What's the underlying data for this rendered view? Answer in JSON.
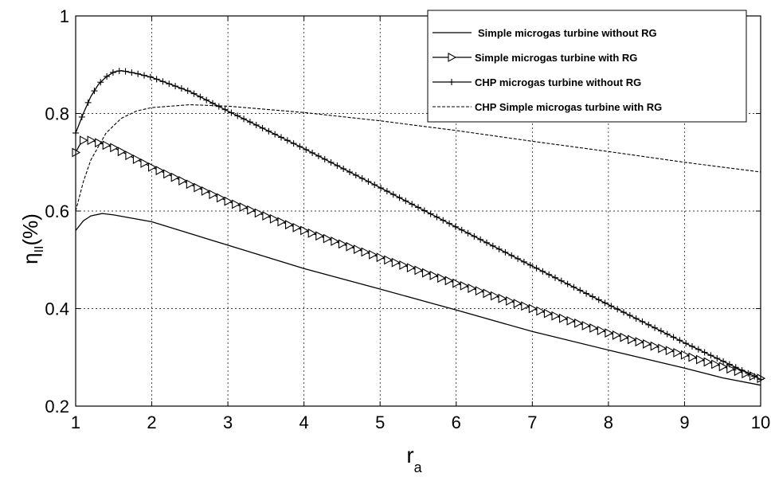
{
  "chart_data": {
    "type": "line",
    "title": "",
    "xlabel": "r",
    "xlabel_subscript": "a",
    "ylabel": "η",
    "ylabel_subscript": "II",
    "ylabel_suffix": "(%)",
    "xlim": [
      1,
      10
    ],
    "ylim": [
      0.2,
      1
    ],
    "xticks": [
      1,
      2,
      3,
      4,
      5,
      6,
      7,
      8,
      9,
      10
    ],
    "xtick_labels": [
      "1",
      "2",
      "3",
      "4",
      "5",
      "6",
      "7",
      "8",
      "9",
      "10"
    ],
    "yticks": [
      0.2,
      0.4,
      0.6,
      0.8,
      1
    ],
    "ytick_labels": [
      "0.2",
      "0.4",
      "0.6",
      "0.8",
      "1"
    ],
    "grid": true,
    "legend_position": "top-right",
    "series": [
      {
        "name": "Simple microgas turbine without RG",
        "style": "solid",
        "marker": "none",
        "x": [
          1,
          1.1,
          1.2,
          1.35,
          1.5,
          2,
          3,
          4,
          5,
          6,
          7,
          8,
          9,
          9.5,
          10
        ],
        "y": [
          0.56,
          0.58,
          0.59,
          0.595,
          0.592,
          0.578,
          0.53,
          0.482,
          0.44,
          0.397,
          0.353,
          0.315,
          0.278,
          0.258,
          0.243
        ]
      },
      {
        "name": "Simple microgas turbine with RG",
        "style": "solid",
        "marker": "triangle-right",
        "x": [
          1,
          1.05,
          1.1,
          1.2,
          1.3,
          1.5,
          2,
          3,
          4,
          5,
          6,
          7,
          8,
          9,
          10
        ],
        "y": [
          0.72,
          0.735,
          0.745,
          0.745,
          0.74,
          0.73,
          0.69,
          0.62,
          0.56,
          0.505,
          0.452,
          0.4,
          0.35,
          0.305,
          0.257
        ]
      },
      {
        "name": "CHP  microgas turbine without RG",
        "style": "solid",
        "marker": "plus",
        "x": [
          1,
          1.1,
          1.2,
          1.3,
          1.4,
          1.5,
          1.6,
          1.8,
          2,
          2.5,
          3,
          4,
          5,
          6,
          7,
          8,
          9,
          10
        ],
        "y": [
          0.76,
          0.8,
          0.835,
          0.86,
          0.875,
          0.885,
          0.888,
          0.882,
          0.874,
          0.845,
          0.805,
          0.728,
          0.648,
          0.567,
          0.487,
          0.408,
          0.33,
          0.255
        ]
      },
      {
        "name": "CHP Simple microgas turbine with RG",
        "style": "dashed",
        "marker": "none",
        "x": [
          1,
          1.1,
          1.2,
          1.4,
          1.6,
          1.8,
          2,
          2.5,
          3,
          4,
          5,
          6,
          7,
          8,
          9,
          10
        ],
        "y": [
          0.6,
          0.66,
          0.705,
          0.76,
          0.79,
          0.805,
          0.812,
          0.818,
          0.815,
          0.802,
          0.785,
          0.765,
          0.743,
          0.722,
          0.7,
          0.68
        ]
      }
    ]
  }
}
